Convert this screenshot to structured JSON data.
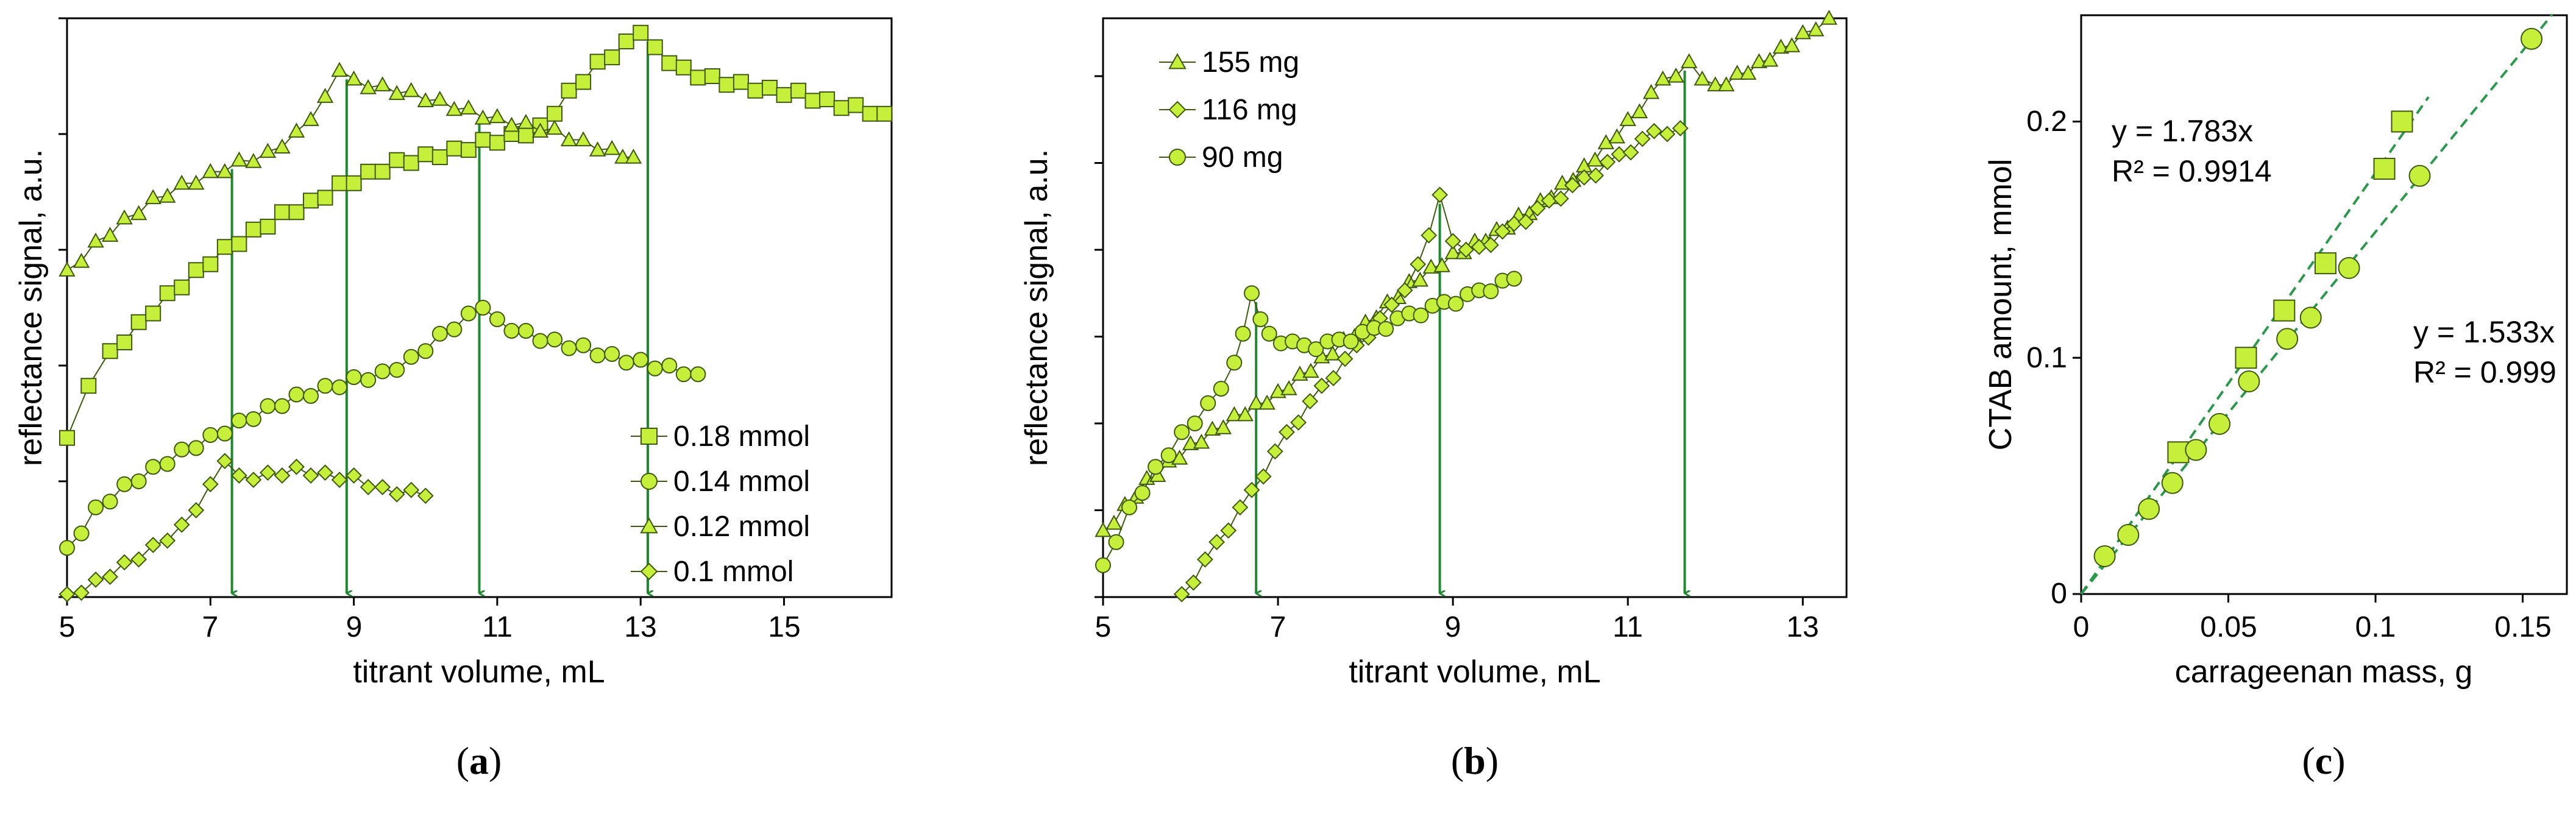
{
  "chart_data": [
    {
      "id": "a",
      "type": "scatter",
      "panel_label": "a",
      "xlabel": "titrant volume, mL",
      "ylabel": "reflectance signal, a.u.",
      "xlim": [
        5,
        16.5
      ],
      "ylim": [
        0,
        10
      ],
      "xticks": [
        5,
        7,
        9,
        11,
        13,
        15
      ],
      "yticks": [
        0,
        2,
        4,
        6,
        8,
        10
      ],
      "show_y_tick_labels": false,
      "legend_position": "bottom-right",
      "series": [
        {
          "name": "0.18 mmol",
          "marker": "square",
          "x": [
            5.0,
            5.3,
            5.6,
            6.0,
            6.4,
            6.8,
            7.2,
            7.6,
            8.0,
            8.4,
            8.8,
            9.2,
            9.6,
            10.0,
            10.4,
            10.8,
            11.2,
            11.6,
            12.0,
            12.4,
            12.8,
            13.0,
            13.2,
            13.6,
            14.0,
            14.4,
            14.8,
            15.2,
            15.6,
            16.0,
            16.4
          ],
          "y": [
            2.7,
            3.6,
            4.2,
            4.7,
            5.2,
            5.6,
            6.0,
            6.3,
            6.6,
            6.8,
            7.1,
            7.3,
            7.5,
            7.6,
            7.7,
            7.85,
            7.95,
            8.1,
            8.7,
            9.2,
            9.55,
            9.7,
            9.45,
            9.1,
            8.95,
            8.85,
            8.75,
            8.7,
            8.55,
            8.45,
            8.35
          ]
        },
        {
          "name": "0.14 mmol",
          "marker": "circle",
          "x": [
            5.0,
            5.4,
            5.8,
            6.2,
            6.6,
            7.0,
            7.4,
            7.8,
            8.2,
            8.6,
            9.0,
            9.4,
            9.8,
            10.2,
            10.6,
            10.8,
            11.0,
            11.4,
            11.8,
            12.2,
            12.6,
            13.0,
            13.4,
            13.8
          ],
          "y": [
            0.8,
            1.5,
            1.9,
            2.2,
            2.5,
            2.75,
            3.0,
            3.25,
            3.45,
            3.6,
            3.75,
            3.85,
            4.1,
            4.5,
            4.85,
            4.95,
            4.75,
            4.55,
            4.4,
            4.3,
            4.15,
            4.05,
            3.95,
            3.85
          ]
        },
        {
          "name": "0.12 mmol",
          "marker": "triangle",
          "x": [
            5.0,
            5.4,
            5.8,
            6.2,
            6.6,
            7.0,
            7.4,
            7.8,
            8.2,
            8.6,
            8.8,
            9.0,
            9.4,
            9.8,
            10.2,
            10.6,
            11.0,
            11.4,
            11.8,
            12.2,
            12.6,
            12.9
          ],
          "y": [
            5.6,
            6.1,
            6.5,
            6.85,
            7.1,
            7.3,
            7.5,
            7.65,
            8.0,
            8.6,
            9.05,
            8.9,
            8.8,
            8.7,
            8.55,
            8.4,
            8.25,
            8.15,
            8.05,
            7.85,
            7.7,
            7.6
          ]
        },
        {
          "name": "0.1 mmol",
          "marker": "diamond",
          "x": [
            5.0,
            5.4,
            5.8,
            6.2,
            6.6,
            7.0,
            7.2,
            7.4,
            7.8,
            8.2,
            8.6,
            9.0,
            9.4,
            9.8,
            10.0
          ],
          "y": [
            0.0,
            0.25,
            0.55,
            0.85,
            1.2,
            1.9,
            2.3,
            2.05,
            2.1,
            2.2,
            2.1,
            2.05,
            1.85,
            1.8,
            1.75
          ]
        }
      ],
      "arrows": [
        7.3,
        8.9,
        10.75,
        13.1
      ]
    },
    {
      "id": "b",
      "type": "scatter",
      "panel_label": "b",
      "xlabel": "titrant volume, mL",
      "ylabel": "reflectance signal, a.u.",
      "xlim": [
        5,
        13.5
      ],
      "ylim": [
        0,
        10
      ],
      "xticks": [
        5,
        7,
        9,
        11,
        13
      ],
      "yticks": [
        0,
        1.5,
        3,
        4.5,
        6,
        7.5,
        9
      ],
      "show_y_tick_labels": false,
      "legend_position": "top-left",
      "series": [
        {
          "name": "155 mg",
          "marker": "triangle",
          "x": [
            5.0,
            5.5,
            6.0,
            6.5,
            7.0,
            7.5,
            8.0,
            8.5,
            9.0,
            9.5,
            10.0,
            10.5,
            11.0,
            11.4,
            11.7,
            12.0,
            12.5,
            13.0,
            13.3
          ],
          "y": [
            1.1,
            2.0,
            2.6,
            3.1,
            3.5,
            4.1,
            4.7,
            5.4,
            5.9,
            6.3,
            6.8,
            7.4,
            8.2,
            8.9,
            9.2,
            8.8,
            9.2,
            9.7,
            10.0
          ]
        },
        {
          "name": "116 mg",
          "marker": "diamond",
          "x": [
            5.9,
            6.3,
            6.7,
            7.1,
            7.5,
            7.9,
            8.3,
            8.6,
            8.85,
            9.0,
            9.3,
            9.7,
            10.1,
            10.5,
            10.9,
            11.3,
            11.6
          ],
          "y": [
            0.0,
            0.9,
            1.8,
            2.8,
            3.6,
            4.3,
            5.0,
            5.7,
            6.9,
            6.1,
            6.0,
            6.4,
            6.8,
            7.2,
            7.6,
            8.0,
            8.1
          ]
        },
        {
          "name": "90 mg",
          "marker": "circle",
          "x": [
            5.0,
            5.3,
            5.6,
            5.9,
            6.2,
            6.5,
            6.7,
            6.9,
            7.3,
            7.7,
            8.1,
            8.5,
            8.9,
            9.3,
            9.7
          ],
          "y": [
            0.5,
            1.5,
            2.2,
            2.8,
            3.3,
            4.0,
            5.2,
            4.5,
            4.3,
            4.4,
            4.6,
            4.85,
            5.05,
            5.25,
            5.5
          ]
        }
      ],
      "arrows": [
        6.75,
        8.85,
        11.65
      ]
    },
    {
      "id": "c",
      "type": "scatter",
      "panel_label": "c",
      "xlabel": "carrageenan mass, g",
      "ylabel": "CTAB amount, mmol",
      "xlim": [
        0,
        0.165
      ],
      "ylim": [
        0,
        0.245
      ],
      "xticks": [
        0,
        0.05,
        0.1,
        0.15
      ],
      "xtick_labels": [
        "0",
        "0.05",
        "0.1",
        "0.15"
      ],
      "yticks": [
        0,
        0.1,
        0.2
      ],
      "ytick_labels": [
        "0",
        "0.1",
        "0.2"
      ],
      "series": [
        {
          "name": "squares",
          "marker": "square",
          "x": [
            0.033,
            0.056,
            0.069,
            0.083,
            0.103,
            0.109
          ],
          "y": [
            0.06,
            0.1,
            0.12,
            0.14,
            0.18,
            0.2
          ]
        },
        {
          "name": "circles",
          "marker": "circle",
          "x": [
            0.008,
            0.016,
            0.023,
            0.031,
            0.039,
            0.047,
            0.057,
            0.07,
            0.078,
            0.091,
            0.115,
            0.153
          ],
          "y": [
            0.016,
            0.025,
            0.036,
            0.047,
            0.061,
            0.072,
            0.09,
            0.108,
            0.117,
            0.138,
            0.177,
            0.235
          ]
        }
      ],
      "fits": [
        {
          "slope": 1.783,
          "x_end": 0.118,
          "equation": "y = 1.783x",
          "r2": "R² = 0.9914"
        },
        {
          "slope": 1.533,
          "x_end": 0.16,
          "equation": "y = 1.533x",
          "r2": "R² = 0.999"
        }
      ]
    }
  ],
  "colors": {
    "marker_fill": "#c6ef3c",
    "marker_stroke": "#3d5a0c",
    "arrow": "#1e8a2e",
    "fit_line": "#2a9a4a",
    "axis": "#000000"
  }
}
